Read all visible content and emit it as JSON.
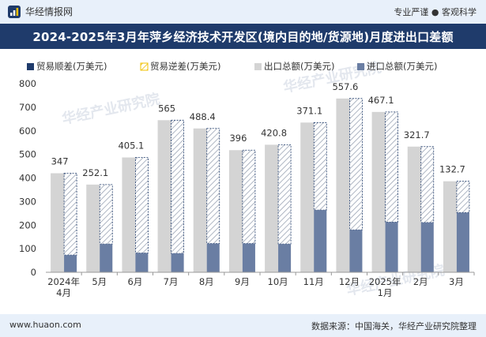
{
  "header": {
    "brand": "华经情报网",
    "tagline": "专业严谨 ● 客观科学"
  },
  "footer": {
    "website": "www.huaon.com",
    "source": "数据来源：中国海关，华经产业研究院整理"
  },
  "watermarks": [
    "华经产业研究院",
    "www.huaon.com"
  ],
  "colors": {
    "export": "#d4d4d4",
    "import": "#6a7ea3",
    "trade_surplus": "#1f3b6b",
    "trade_deficit": "#f0c000",
    "title_bg": "#1f3b6b"
  },
  "chart_data": {
    "type": "bar",
    "title": "2024-2025年3月年萍乡经济技术开发区(境内目的地/货源地)月度进出口差额",
    "categories": [
      "2024年\n4月",
      "5月",
      "6月",
      "7月",
      "8月",
      "9月",
      "10月",
      "11月",
      "12月",
      "2025年\n1月",
      "2月",
      "3月"
    ],
    "series": [
      {
        "name": "贸易顺差(万美元)",
        "values": [
          347,
          252.1,
          405.1,
          565,
          488.4,
          396,
          420.8,
          371.1,
          557.6,
          467.1,
          321.7,
          132.7
        ]
      },
      {
        "name": "贸易逆差(万美元)",
        "values": [
          0,
          0,
          0,
          0,
          0,
          0,
          0,
          0,
          0,
          0,
          0,
          0
        ]
      },
      {
        "name": "出口总额(万美元)",
        "values": [
          420,
          372,
          487,
          645,
          610,
          518,
          541,
          635,
          737,
          680,
          533,
          386
        ]
      },
      {
        "name": "进口总额(万美元)",
        "values": [
          73,
          120,
          82,
          80,
          122,
          122,
          120,
          264,
          180,
          213,
          211,
          253
        ]
      }
    ],
    "ylim": [
      0,
      800
    ],
    "yticks": [
      0,
      100,
      200,
      300,
      400,
      500,
      600,
      700,
      800
    ],
    "xlabel": "",
    "ylabel": "",
    "legend_position": "top-left",
    "grid": false
  }
}
